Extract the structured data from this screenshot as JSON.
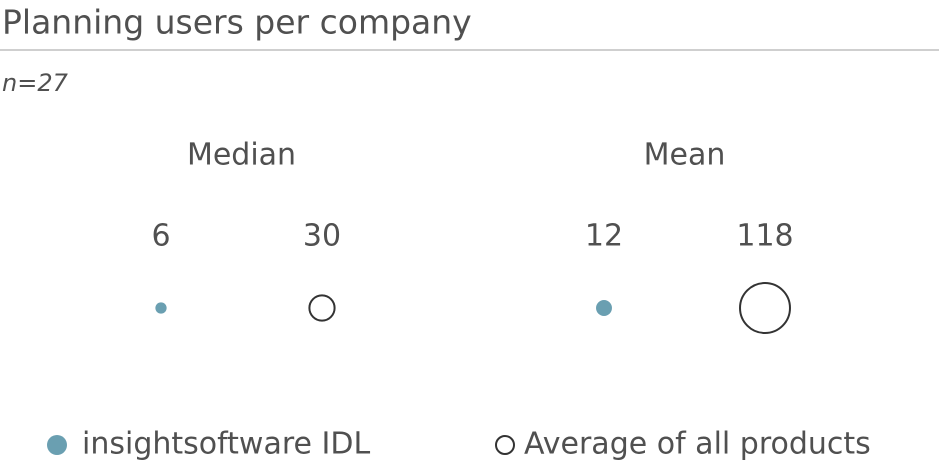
{
  "chart_data": {
    "type": "bubble",
    "title": "Planning users per company",
    "subtitle": "n=27",
    "categories": [
      "Median",
      "Mean"
    ],
    "series": [
      {
        "name": "insightsoftware IDL",
        "color": "#6a9fb1",
        "marker": "filled",
        "values": [
          6,
          12
        ]
      },
      {
        "name": "Average of all products",
        "color": "#333333",
        "marker": "hollow",
        "values": [
          30,
          118
        ]
      }
    ],
    "legend": "bottom"
  }
}
